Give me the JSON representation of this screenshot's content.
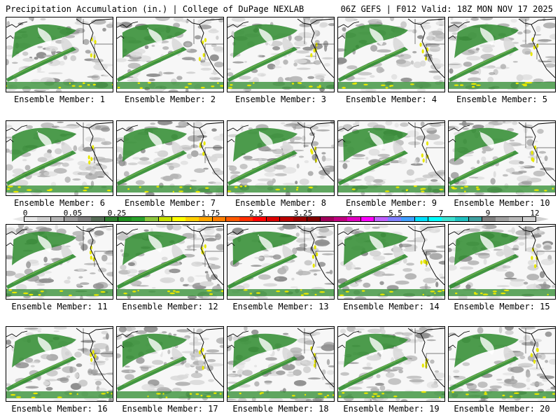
{
  "header": {
    "left_title": "Precipitation Accumulation (in.) | College of DuPage NEXLAB",
    "right_title": "06Z GEFS | F012 Valid: 18Z MON NOV 17 2025"
  },
  "panel_label_prefix": "Ensemble Member: ",
  "members": [
    {
      "label": "Ensemble Member: 1"
    },
    {
      "label": "Ensemble Member: 2"
    },
    {
      "label": "Ensemble Member: 3"
    },
    {
      "label": "Ensemble Member: 4"
    },
    {
      "label": "Ensemble Member: 5"
    },
    {
      "label": "Ensemble Member: 6"
    },
    {
      "label": "Ensemble Member: 7"
    },
    {
      "label": "Ensemble Member: 8"
    },
    {
      "label": "Ensemble Member: 9"
    },
    {
      "label": "Ensemble Member: 10"
    },
    {
      "label": "Ensemble Member: 11"
    },
    {
      "label": "Ensemble Member: 12"
    },
    {
      "label": "Ensemble Member: 13"
    },
    {
      "label": "Ensemble Member: 14"
    },
    {
      "label": "Ensemble Member: 15"
    },
    {
      "label": "Ensemble Member: 16"
    },
    {
      "label": "Ensemble Member: 17"
    },
    {
      "label": "Ensemble Member: 18"
    },
    {
      "label": "Ensemble Member: 19"
    },
    {
      "label": "Ensemble Member: 20"
    }
  ],
  "colorbar": {
    "tick_labels": [
      "0",
      "0.05",
      "0.25",
      "1",
      "1.75",
      "2.5",
      "3.25",
      "4",
      "5.5",
      "7",
      "9",
      "12"
    ],
    "colors": [
      "#e6e6e6",
      "#cfcfcf",
      "#b4b4b4",
      "#9a9a9a",
      "#7f7f7f",
      "#556b55",
      "#2e7d2e",
      "#1f8f1f",
      "#2aa02a",
      "#8cc63f",
      "#c8e000",
      "#ffff00",
      "#ffd000",
      "#ffa500",
      "#ff7f00",
      "#ff5a00",
      "#ff3000",
      "#ff0000",
      "#dd0000",
      "#bb0000",
      "#990000",
      "#800000",
      "#a0005a",
      "#c00080",
      "#e000c0",
      "#ff00ff",
      "#c060ff",
      "#8080ff",
      "#40a0ff",
      "#00e0ff",
      "#00ffff",
      "#40e0d0",
      "#20c0c0",
      "#40a0a0",
      "#808080",
      "#a0a0a0",
      "#b8b8b8",
      "#d0d0d0"
    ]
  },
  "map_colors": {
    "ocean": "#f7f7f7",
    "light_gray": "#d9d9d9",
    "mid_gray": "#b5b5b5",
    "dark_gray": "#8f8f8f",
    "green": "#2e8b2e",
    "light_green": "#6ab04c",
    "yellow": "#e8e800",
    "coast": "#000000"
  }
}
